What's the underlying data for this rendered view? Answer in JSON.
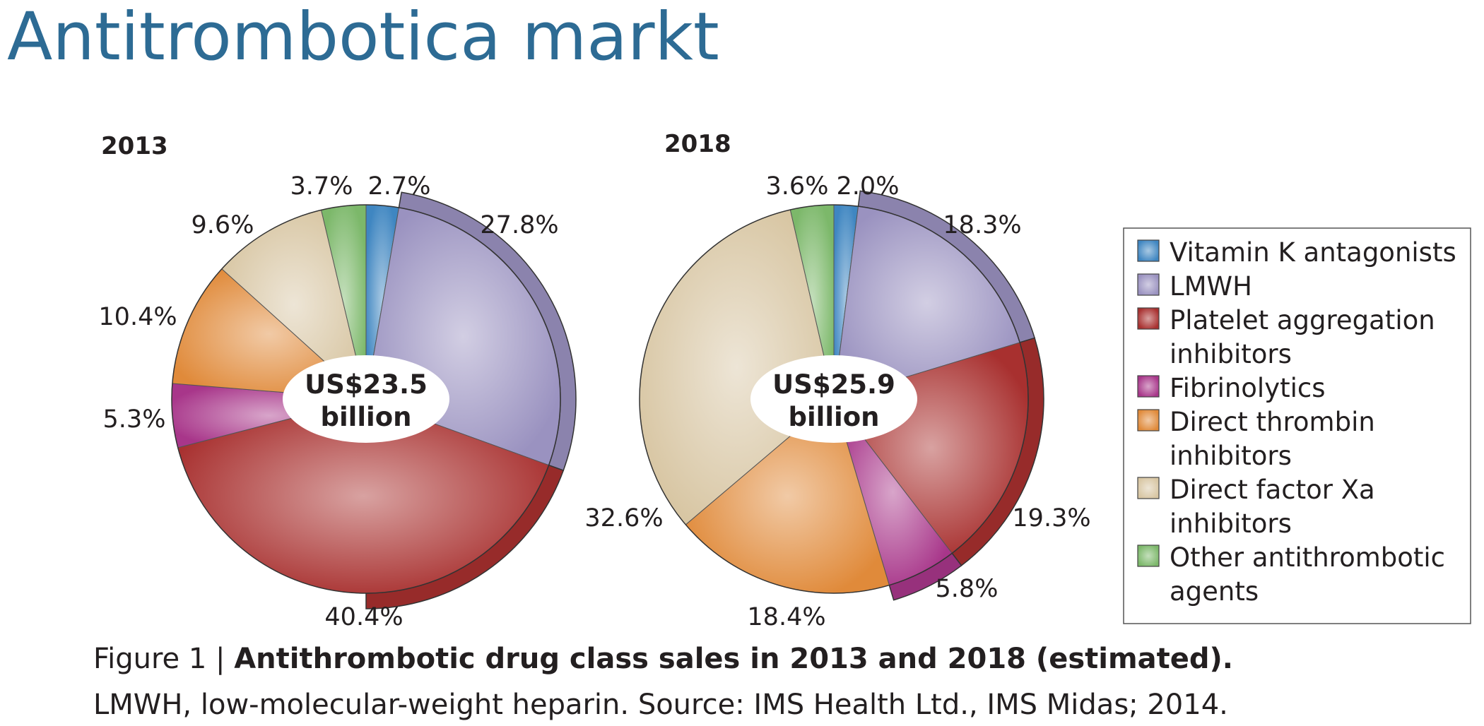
{
  "title": "Antitrombotica markt",
  "chart_data": [
    {
      "type": "pie",
      "title": "2013",
      "center_label": [
        "US$23.5",
        "billion"
      ],
      "categories": [
        "Vitamin K antagonists",
        "LMWH",
        "Platelet aggregation inhibitors",
        "Fibrinolytics",
        "Direct thrombin inhibitors",
        "Direct factor Xa inhibitors",
        "Other antithrombotic agents"
      ],
      "values": [
        2.7,
        27.8,
        40.4,
        5.3,
        10.4,
        9.6,
        3.7
      ],
      "value_labels": [
        "2.7%",
        "27.8%",
        "40.4%",
        "5.3%",
        "10.4%",
        "9.6%",
        "3.7%"
      ]
    },
    {
      "type": "pie",
      "title": "2018",
      "center_label": [
        "US$25.9",
        "billion"
      ],
      "categories": [
        "Vitamin K antagonists",
        "LMWH",
        "Platelet aggregation inhibitors",
        "Fibrinolytics",
        "Direct thrombin inhibitors",
        "Direct factor Xa inhibitors",
        "Other antithrombotic agents"
      ],
      "values": [
        2.0,
        18.3,
        19.3,
        5.8,
        18.4,
        32.6,
        3.6
      ],
      "value_labels": [
        "2.0%",
        "18.3%",
        "19.3%",
        "5.8%",
        "18.4%",
        "32.6%",
        "3.6%"
      ]
    }
  ],
  "legend": {
    "placement": "right",
    "items": [
      {
        "lines": [
          "Vitamin K antagonists"
        ],
        "color": "#3f86c1"
      },
      {
        "lines": [
          "LMWH"
        ],
        "color": "#9a92c0"
      },
      {
        "lines": [
          "Platelet aggregation",
          "inhibitors"
        ],
        "color": "#a8302f"
      },
      {
        "lines": [
          "Fibrinolytics"
        ],
        "color": "#a8368a"
      },
      {
        "lines": [
          "Direct thrombin",
          "inhibitors"
        ],
        "color": "#e08a3a"
      },
      {
        "lines": [
          "Direct factor Xa",
          "inhibitors"
        ],
        "color": "#d8c6a3"
      },
      {
        "lines": [
          "Other antithrombotic",
          "agents"
        ],
        "color": "#7cb86a"
      }
    ]
  },
  "colors": {
    "title": "#2d6b94",
    "slices": [
      "#3f86c1",
      "#9a92c0",
      "#a8302f",
      "#a8368a",
      "#e08a3a",
      "#d8c6a3",
      "#7cb86a"
    ]
  },
  "caption": {
    "prefix": "Figure 1 | ",
    "bold": "Antithrombotic drug class sales in 2013 and 2018 (estimated).",
    "line2": "LMWH, low-molecular-weight heparin. Source: IMS Health Ltd., IMS Midas; 2014."
  }
}
